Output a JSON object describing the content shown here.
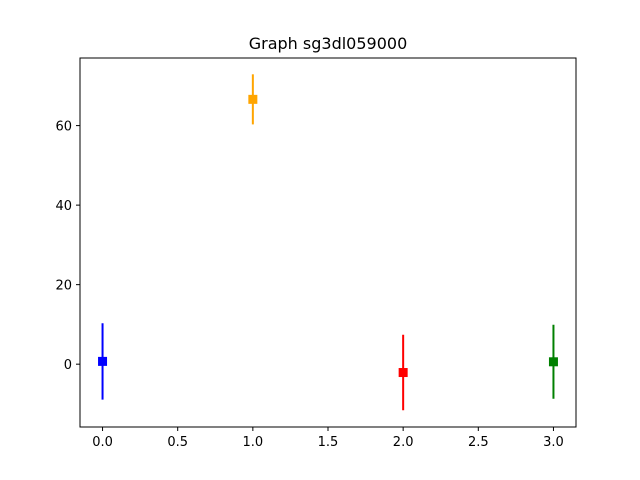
{
  "chart_data": {
    "type": "scatter",
    "title": "Graph sg3dl059000",
    "xlabel": "",
    "ylabel": "",
    "xlim": [
      -0.15,
      3.15
    ],
    "ylim": [
      -15.8,
      77.0
    ],
    "x_ticks": [
      0.0,
      0.5,
      1.0,
      1.5,
      2.0,
      2.5,
      3.0
    ],
    "x_tick_labels": [
      "0.0",
      "0.5",
      "1.0",
      "1.5",
      "2.0",
      "2.5",
      "3.0"
    ],
    "y_ticks": [
      0,
      20,
      40,
      60
    ],
    "y_tick_labels": [
      "0",
      "20",
      "40",
      "60"
    ],
    "grid": false,
    "marker": "square",
    "points": [
      {
        "x": 0,
        "y": 0.7,
        "yerr": 9.6,
        "color": "#0000ff"
      },
      {
        "x": 1,
        "y": 66.6,
        "yerr": 6.3,
        "color": "#ffa500"
      },
      {
        "x": 2,
        "y": -2.1,
        "yerr": 9.5,
        "color": "#ff0000"
      },
      {
        "x": 3,
        "y": 0.6,
        "yerr": 9.3,
        "color": "#008000"
      }
    ]
  }
}
